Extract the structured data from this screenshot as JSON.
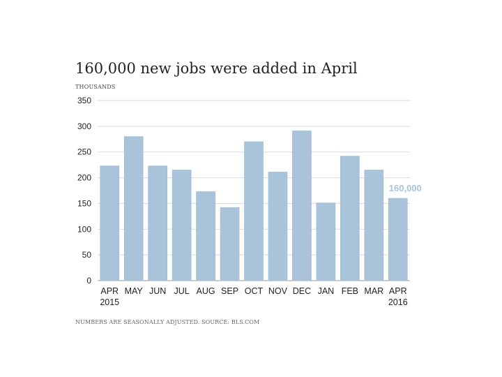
{
  "title": "160,000 new jobs were added in April",
  "unit_label": "THOUSANDS",
  "footnote": "NUMBERS ARE SEASONALLY ADJUSTED. SOURCE: BLS.COM",
  "colors": {
    "bar": "#a9c4da",
    "bar_edge": "#9cb8cf",
    "grid": "#d9d9d9",
    "axis": "#9a9a9a",
    "label": "#a9c4da"
  },
  "chart_data": {
    "type": "bar",
    "title": "160,000 new jobs were added in April",
    "ylabel": "THOUSANDS",
    "xlabel": "",
    "categories": [
      "APR",
      "MAY",
      "JUN",
      "JUL",
      "AUG",
      "SEP",
      "OCT",
      "NOV",
      "DEC",
      "JAN",
      "FEB",
      "MAR",
      "APR"
    ],
    "category_sublabels": [
      "2015",
      "",
      "",
      "",
      "",
      "",
      "",
      "",
      "",
      "",
      "",
      "",
      "2016"
    ],
    "values": [
      223,
      280,
      223,
      215,
      173,
      142,
      270,
      211,
      291,
      151,
      242,
      215,
      160
    ],
    "ylim": [
      0,
      350
    ],
    "yticks": [
      0,
      50,
      100,
      150,
      200,
      250,
      300,
      350
    ],
    "grid": true,
    "annotation": {
      "index": 12,
      "text": "160,000"
    }
  }
}
